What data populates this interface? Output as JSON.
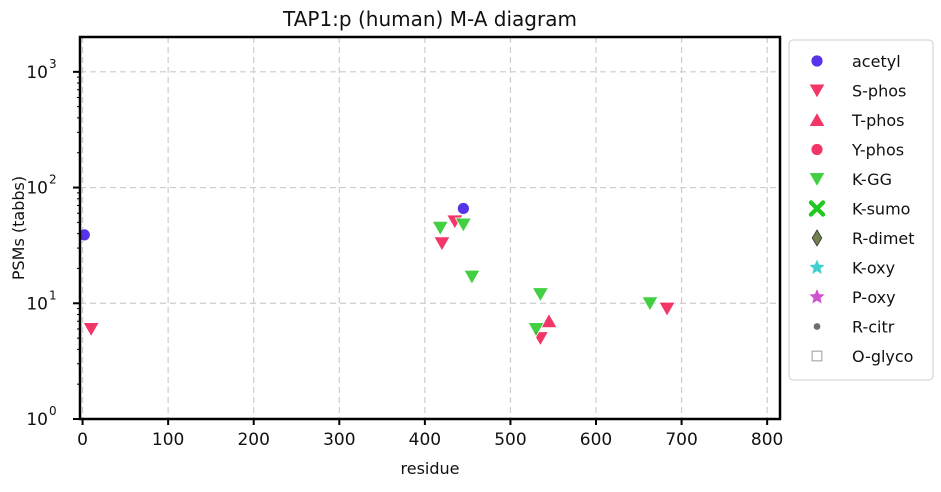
{
  "chart_data": {
    "type": "scatter",
    "title": "TAP1:p (human) M-A diagram",
    "xlabel": "residue",
    "ylabel": "PSMs (tabbs)",
    "x_ticks": [
      "0",
      "100",
      "200",
      "300",
      "400",
      "500",
      "600",
      "700",
      "800"
    ],
    "y_ticks": [
      {
        "base": "10",
        "exp": "0"
      },
      {
        "base": "10",
        "exp": "1"
      },
      {
        "base": "10",
        "exp": "2"
      },
      {
        "base": "10",
        "exp": "3"
      }
    ],
    "xlim": [
      -3,
      815
    ],
    "ylim": [
      1,
      2000
    ],
    "yscale": "log",
    "grid": true,
    "legend_position": "outside-right",
    "series": [
      {
        "name": "acetyl",
        "marker": "circle",
        "color": "#3a10e5",
        "points": [
          [
            2,
            39
          ],
          [
            445,
            66
          ]
        ]
      },
      {
        "name": "S-phos",
        "marker": "triangle-down",
        "color": "#f0134d",
        "points": [
          [
            10,
            6
          ],
          [
            420,
            33
          ],
          [
            435,
            51
          ],
          [
            535,
            5
          ],
          [
            683,
            9
          ]
        ]
      },
      {
        "name": "T-phos",
        "marker": "triangle-up",
        "color": "#f0134d",
        "points": [
          [
            545,
            7
          ]
        ]
      },
      {
        "name": "Y-phos",
        "marker": "circle",
        "color": "#f0134d",
        "points": []
      },
      {
        "name": "K-GG",
        "marker": "triangle-down",
        "color": "#21c821",
        "points": [
          [
            418,
            45
          ],
          [
            445,
            48
          ],
          [
            455,
            17
          ],
          [
            530,
            6
          ],
          [
            535,
            12
          ],
          [
            663,
            10
          ]
        ]
      },
      {
        "name": "K-sumo",
        "marker": "x",
        "color": "#21c821",
        "points": []
      },
      {
        "name": "R-dimet",
        "marker": "diamond",
        "color": "#556b2f",
        "points": []
      },
      {
        "name": "K-oxy",
        "marker": "star",
        "color": "#1ec8c8",
        "points": []
      },
      {
        "name": "P-oxy",
        "marker": "star",
        "color": "#c832c8",
        "points": []
      },
      {
        "name": "R-citr",
        "marker": "dot",
        "color": "#555555",
        "points": []
      },
      {
        "name": "O-glyco",
        "marker": "square",
        "color": "#aaaaaa",
        "points": []
      }
    ]
  }
}
